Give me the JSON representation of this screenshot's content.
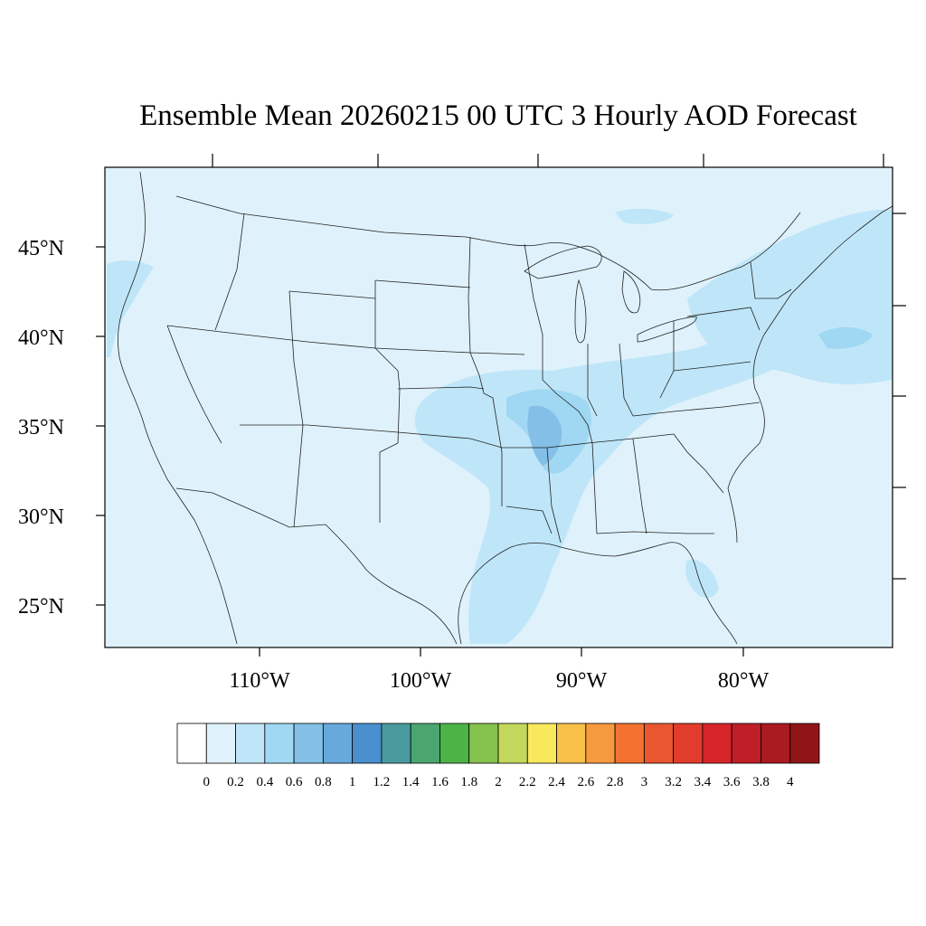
{
  "title": "Ensemble Mean 20260215 00 UTC 3 Hourly AOD Forecast",
  "map": {
    "lat_labels": [
      "45°N",
      "40°N",
      "35°N",
      "30°N",
      "25°N"
    ],
    "lon_labels": [
      "110°W",
      "100°W",
      "90°W",
      "80°W"
    ],
    "background_color": "#dff2fb"
  },
  "colorbar": {
    "labels": [
      "0",
      "0.2",
      "0.4",
      "0.6",
      "0.8",
      "1",
      "1.2",
      "1.4",
      "1.6",
      "1.8",
      "2",
      "2.2",
      "2.4",
      "2.6",
      "2.8",
      "3",
      "3.2",
      "3.4",
      "3.6",
      "3.8",
      "4"
    ],
    "colors": [
      "#ffffff",
      "#dff2fb",
      "#bfe6f8",
      "#a0d8f3",
      "#83bfe6",
      "#68a9dc",
      "#4a8fce",
      "#4a9b9e",
      "#4aa56f",
      "#4db347",
      "#86c24e",
      "#c3d75c",
      "#f7e85c",
      "#f7c048",
      "#f69a3f",
      "#f37230",
      "#ea5630",
      "#e23d2c",
      "#d5252a",
      "#bf1f26",
      "#aa1a21",
      "#8f1519"
    ]
  }
}
